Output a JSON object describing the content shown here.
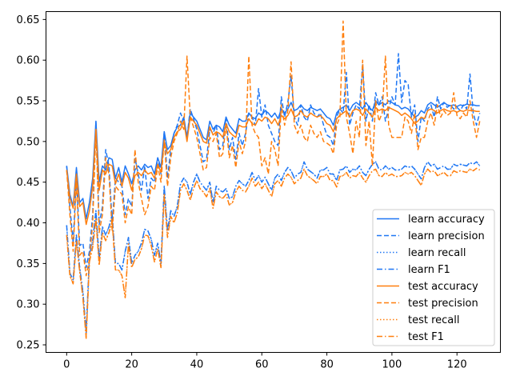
{
  "chart_data": {
    "type": "line",
    "title": "",
    "xlabel": "",
    "ylabel": "",
    "xlim": [
      -6.35,
      133.35
    ],
    "ylim": [
      0.2407,
      0.6597
    ],
    "grid": false,
    "legend_position": "lower-right",
    "x_ticks": [
      0,
      20,
      40,
      60,
      80,
      100,
      120
    ],
    "x_tick_labels": [
      "0",
      "20",
      "40",
      "60",
      "80",
      "100",
      "120"
    ],
    "y_ticks": [
      0.25,
      0.3,
      0.35,
      0.4,
      0.45,
      0.5,
      0.55,
      0.6,
      0.65
    ],
    "y_tick_labels": [
      "0.25",
      "0.30",
      "0.35",
      "0.40",
      "0.45",
      "0.50",
      "0.55",
      "0.60",
      "0.65"
    ],
    "colors": {
      "learn": "#1f77f4",
      "test": "#ff7f0e"
    },
    "series": [
      {
        "name": "learn accuracy",
        "color": "#1f77f4",
        "style": "solid",
        "values": [
          0.47,
          0.435,
          0.42,
          0.468,
          0.425,
          0.43,
          0.405,
          0.425,
          0.455,
          0.525,
          0.45,
          0.47,
          0.465,
          0.48,
          0.478,
          0.455,
          0.468,
          0.45,
          0.47,
          0.46,
          0.448,
          0.465,
          0.47,
          0.465,
          0.472,
          0.468,
          0.47,
          0.46,
          0.48,
          0.468,
          0.512,
          0.49,
          0.495,
          0.51,
          0.518,
          0.52,
          0.53,
          0.505,
          0.535,
          0.53,
          0.525,
          0.515,
          0.505,
          0.502,
          0.525,
          0.515,
          0.52,
          0.518,
          0.512,
          0.53,
          0.52,
          0.515,
          0.51,
          0.528,
          0.525,
          0.525,
          0.535,
          0.53,
          0.528,
          0.535,
          0.532,
          0.538,
          0.535,
          0.53,
          0.535,
          0.528,
          0.54,
          0.535,
          0.54,
          0.548,
          0.538,
          0.54,
          0.545,
          0.54,
          0.538,
          0.542,
          0.54,
          0.538,
          0.54,
          0.535,
          0.53,
          0.528,
          0.52,
          0.535,
          0.54,
          0.542,
          0.545,
          0.538,
          0.545,
          0.548,
          0.545,
          0.54,
          0.548,
          0.542,
          0.538,
          0.55,
          0.545,
          0.548,
          0.545,
          0.55,
          0.548,
          0.545,
          0.544,
          0.54,
          0.542,
          0.54,
          0.535,
          0.53,
          0.532,
          0.538,
          0.535,
          0.545,
          0.548,
          0.545,
          0.542,
          0.545,
          0.548,
          0.545,
          0.544,
          0.545,
          0.543,
          0.545,
          0.544,
          0.546,
          0.545,
          0.545,
          0.544,
          0.544
        ]
      },
      {
        "name": "learn precision",
        "color": "#1f77f4",
        "style": "dashed",
        "values": [
          0.47,
          0.42,
          0.375,
          0.46,
          0.372,
          0.375,
          0.345,
          0.365,
          0.41,
          0.525,
          0.398,
          0.42,
          0.49,
          0.47,
          0.4,
          0.455,
          0.45,
          0.445,
          0.41,
          0.43,
          0.42,
          0.48,
          0.46,
          0.44,
          0.47,
          0.43,
          0.455,
          0.45,
          0.48,
          0.46,
          0.512,
          0.455,
          0.49,
          0.51,
          0.52,
          0.535,
          0.525,
          0.505,
          0.54,
          0.528,
          0.515,
          0.495,
          0.475,
          0.478,
          0.515,
          0.51,
          0.52,
          0.49,
          0.495,
          0.53,
          0.49,
          0.505,
          0.478,
          0.51,
          0.495,
          0.51,
          0.535,
          0.53,
          0.52,
          0.565,
          0.53,
          0.545,
          0.52,
          0.51,
          0.5,
          0.495,
          0.555,
          0.53,
          0.548,
          0.58,
          0.53,
          0.52,
          0.545,
          0.53,
          0.525,
          0.545,
          0.535,
          0.53,
          0.535,
          0.52,
          0.508,
          0.505,
          0.495,
          0.53,
          0.54,
          0.535,
          0.585,
          0.52,
          0.535,
          0.545,
          0.54,
          0.595,
          0.525,
          0.545,
          0.525,
          0.56,
          0.545,
          0.555,
          0.525,
          0.54,
          0.555,
          0.545,
          0.608,
          0.548,
          0.575,
          0.57,
          0.53,
          0.545,
          0.5,
          0.53,
          0.525,
          0.54,
          0.545,
          0.53,
          0.555,
          0.54,
          0.548,
          0.542,
          0.545,
          0.54,
          0.542,
          0.538,
          0.545,
          0.54,
          0.583,
          0.535,
          0.52,
          0.535
        ]
      },
      {
        "name": "learn recall",
        "color": "#1f77f4",
        "style": "dotted",
        "values": [
          0.397,
          0.338,
          0.33,
          0.385,
          0.345,
          0.315,
          0.265,
          0.36,
          0.378,
          0.415,
          0.355,
          0.395,
          0.385,
          0.395,
          0.41,
          0.35,
          0.35,
          0.342,
          0.365,
          0.382,
          0.35,
          0.36,
          0.365,
          0.375,
          0.392,
          0.39,
          0.38,
          0.36,
          0.375,
          0.35,
          0.445,
          0.39,
          0.415,
          0.408,
          0.42,
          0.448,
          0.455,
          0.45,
          0.435,
          0.45,
          0.46,
          0.45,
          0.445,
          0.44,
          0.45,
          0.425,
          0.445,
          0.44,
          0.438,
          0.442,
          0.43,
          0.432,
          0.445,
          0.452,
          0.448,
          0.445,
          0.452,
          0.462,
          0.452,
          0.458,
          0.45,
          0.456,
          0.448,
          0.44,
          0.455,
          0.46,
          0.452,
          0.462,
          0.468,
          0.464,
          0.455,
          0.46,
          0.462,
          0.475,
          0.466,
          0.463,
          0.46,
          0.455,
          0.465,
          0.465,
          0.468,
          0.46,
          0.46,
          0.452,
          0.465,
          0.466,
          0.47,
          0.462,
          0.466,
          0.465,
          0.47,
          0.462,
          0.458,
          0.466,
          0.472,
          0.475,
          0.466,
          0.465,
          0.47,
          0.466,
          0.468,
          0.465,
          0.465,
          0.466,
          0.47,
          0.468,
          0.47,
          0.466,
          0.46,
          0.454,
          0.468,
          0.475,
          0.47,
          0.472,
          0.466,
          0.468,
          0.47,
          0.466,
          0.466,
          0.472,
          0.47,
          0.472,
          0.471,
          0.47,
          0.474,
          0.472,
          0.475,
          0.47
        ]
      },
      {
        "name": "learn F1",
        "color": "#1f77f4",
        "style": "dashdot",
        "values": [
          0.397,
          0.338,
          0.33,
          0.385,
          0.345,
          0.315,
          0.265,
          0.36,
          0.378,
          0.415,
          0.355,
          0.395,
          0.385,
          0.395,
          0.41,
          0.35,
          0.35,
          0.342,
          0.365,
          0.382,
          0.35,
          0.36,
          0.365,
          0.375,
          0.392,
          0.39,
          0.38,
          0.36,
          0.375,
          0.35,
          0.445,
          0.39,
          0.415,
          0.408,
          0.42,
          0.448,
          0.455,
          0.45,
          0.435,
          0.45,
          0.46,
          0.45,
          0.445,
          0.44,
          0.45,
          0.425,
          0.445,
          0.44,
          0.438,
          0.442,
          0.43,
          0.432,
          0.445,
          0.452,
          0.448,
          0.445,
          0.452,
          0.462,
          0.452,
          0.458,
          0.45,
          0.456,
          0.448,
          0.44,
          0.455,
          0.46,
          0.452,
          0.462,
          0.468,
          0.464,
          0.455,
          0.46,
          0.462,
          0.475,
          0.466,
          0.463,
          0.46,
          0.455,
          0.465,
          0.465,
          0.468,
          0.46,
          0.46,
          0.452,
          0.465,
          0.466,
          0.47,
          0.462,
          0.466,
          0.465,
          0.47,
          0.462,
          0.458,
          0.466,
          0.472,
          0.475,
          0.466,
          0.465,
          0.47,
          0.466,
          0.468,
          0.465,
          0.465,
          0.466,
          0.47,
          0.468,
          0.47,
          0.466,
          0.46,
          0.454,
          0.468,
          0.475,
          0.47,
          0.472,
          0.466,
          0.468,
          0.47,
          0.466,
          0.466,
          0.472,
          0.47,
          0.472,
          0.471,
          0.47,
          0.474,
          0.472,
          0.475,
          0.47
        ]
      },
      {
        "name": "test accuracy",
        "color": "#ff7f0e",
        "style": "solid",
        "values": [
          0.465,
          0.43,
          0.418,
          0.46,
          0.42,
          0.425,
          0.398,
          0.415,
          0.445,
          0.515,
          0.44,
          0.465,
          0.46,
          0.472,
          0.47,
          0.448,
          0.46,
          0.445,
          0.462,
          0.455,
          0.44,
          0.458,
          0.462,
          0.458,
          0.465,
          0.46,
          0.462,
          0.455,
          0.472,
          0.462,
          0.5,
          0.485,
          0.49,
          0.505,
          0.512,
          0.515,
          0.525,
          0.5,
          0.53,
          0.525,
          0.52,
          0.51,
          0.5,
          0.498,
          0.518,
          0.508,
          0.512,
          0.51,
          0.505,
          0.522,
          0.512,
          0.508,
          0.505,
          0.52,
          0.518,
          0.518,
          0.528,
          0.522,
          0.52,
          0.528,
          0.525,
          0.53,
          0.528,
          0.522,
          0.528,
          0.52,
          0.532,
          0.528,
          0.532,
          0.54,
          0.53,
          0.532,
          0.538,
          0.532,
          0.53,
          0.535,
          0.532,
          0.53,
          0.532,
          0.528,
          0.522,
          0.52,
          0.512,
          0.528,
          0.532,
          0.535,
          0.538,
          0.53,
          0.538,
          0.54,
          0.538,
          0.532,
          0.54,
          0.535,
          0.53,
          0.542,
          0.538,
          0.54,
          0.538,
          0.542,
          0.54,
          0.538,
          0.536,
          0.532,
          0.535,
          0.532,
          0.528,
          0.522,
          0.525,
          0.53,
          0.528,
          0.538,
          0.54,
          0.538,
          0.535,
          0.538,
          0.54,
          0.538,
          0.537,
          0.538,
          0.536,
          0.538,
          0.537,
          0.539,
          0.538,
          0.538,
          0.537,
          0.537
        ]
      },
      {
        "name": "test precision",
        "color": "#ff7f0e",
        "style": "dashed",
        "values": [
          0.465,
          0.41,
          0.365,
          0.45,
          0.36,
          0.365,
          0.335,
          0.355,
          0.4,
          0.515,
          0.388,
          0.41,
          0.48,
          0.46,
          0.39,
          0.445,
          0.44,
          0.435,
          0.4,
          0.42,
          0.41,
          0.49,
          0.45,
          0.43,
          0.41,
          0.42,
          0.445,
          0.44,
          0.47,
          0.45,
          0.502,
          0.445,
          0.48,
          0.5,
          0.51,
          0.525,
          0.515,
          0.605,
          0.53,
          0.518,
          0.505,
          0.485,
          0.465,
          0.468,
          0.505,
          0.5,
          0.51,
          0.48,
          0.485,
          0.52,
          0.48,
          0.495,
          0.468,
          0.5,
          0.485,
          0.5,
          0.605,
          0.52,
          0.51,
          0.505,
          0.47,
          0.48,
          0.46,
          0.5,
          0.49,
          0.47,
          0.545,
          0.52,
          0.538,
          0.598,
          0.52,
          0.51,
          0.52,
          0.505,
          0.5,
          0.52,
          0.51,
          0.505,
          0.512,
          0.5,
          0.498,
          0.495,
          0.485,
          0.52,
          0.53,
          0.648,
          0.53,
          0.51,
          0.485,
          0.525,
          0.505,
          0.6,
          0.495,
          0.525,
          0.47,
          0.55,
          0.525,
          0.535,
          0.605,
          0.52,
          0.505,
          0.505,
          0.505,
          0.505,
          0.53,
          0.525,
          0.51,
          0.535,
          0.49,
          0.505,
          0.505,
          0.525,
          0.535,
          0.52,
          0.545,
          0.53,
          0.538,
          0.532,
          0.535,
          0.56,
          0.532,
          0.528,
          0.535,
          0.53,
          0.55,
          0.525,
          0.505,
          0.525
        ]
      },
      {
        "name": "test recall",
        "color": "#ff7f0e",
        "style": "dotted",
        "values": [
          0.385,
          0.335,
          0.325,
          0.378,
          0.34,
          0.308,
          0.258,
          0.352,
          0.37,
          0.405,
          0.348,
          0.388,
          0.378,
          0.388,
          0.402,
          0.342,
          0.342,
          0.335,
          0.308,
          0.374,
          0.345,
          0.355,
          0.358,
          0.368,
          0.385,
          0.384,
          0.372,
          0.352,
          0.368,
          0.345,
          0.435,
          0.382,
          0.408,
          0.4,
          0.412,
          0.44,
          0.448,
          0.44,
          0.428,
          0.442,
          0.452,
          0.442,
          0.438,
          0.432,
          0.442,
          0.418,
          0.438,
          0.432,
          0.43,
          0.435,
          0.422,
          0.425,
          0.438,
          0.445,
          0.44,
          0.438,
          0.445,
          0.455,
          0.445,
          0.45,
          0.442,
          0.448,
          0.44,
          0.432,
          0.448,
          0.452,
          0.445,
          0.455,
          0.46,
          0.456,
          0.448,
          0.452,
          0.455,
          0.466,
          0.458,
          0.455,
          0.452,
          0.448,
          0.457,
          0.457,
          0.46,
          0.452,
          0.452,
          0.444,
          0.457,
          0.458,
          0.462,
          0.455,
          0.458,
          0.457,
          0.462,
          0.455,
          0.45,
          0.458,
          0.464,
          0.466,
          0.458,
          0.457,
          0.462,
          0.458,
          0.46,
          0.457,
          0.457,
          0.458,
          0.462,
          0.46,
          0.462,
          0.458,
          0.452,
          0.446,
          0.46,
          0.466,
          0.462,
          0.464,
          0.458,
          0.46,
          0.462,
          0.458,
          0.458,
          0.464,
          0.462,
          0.464,
          0.463,
          0.462,
          0.466,
          0.464,
          0.467,
          0.465
        ]
      },
      {
        "name": "test F1",
        "color": "#ff7f0e",
        "style": "dashdot",
        "values": [
          0.385,
          0.335,
          0.325,
          0.378,
          0.34,
          0.308,
          0.258,
          0.352,
          0.37,
          0.405,
          0.348,
          0.388,
          0.378,
          0.388,
          0.402,
          0.342,
          0.342,
          0.335,
          0.308,
          0.374,
          0.345,
          0.355,
          0.358,
          0.368,
          0.385,
          0.384,
          0.372,
          0.352,
          0.368,
          0.345,
          0.435,
          0.382,
          0.408,
          0.4,
          0.412,
          0.44,
          0.448,
          0.44,
          0.428,
          0.442,
          0.452,
          0.442,
          0.438,
          0.432,
          0.442,
          0.418,
          0.438,
          0.432,
          0.43,
          0.435,
          0.422,
          0.425,
          0.438,
          0.445,
          0.44,
          0.438,
          0.445,
          0.455,
          0.445,
          0.45,
          0.442,
          0.448,
          0.44,
          0.432,
          0.448,
          0.452,
          0.445,
          0.455,
          0.46,
          0.456,
          0.448,
          0.452,
          0.455,
          0.466,
          0.458,
          0.455,
          0.452,
          0.448,
          0.457,
          0.457,
          0.46,
          0.452,
          0.452,
          0.444,
          0.457,
          0.458,
          0.462,
          0.455,
          0.458,
          0.457,
          0.462,
          0.455,
          0.45,
          0.458,
          0.464,
          0.466,
          0.458,
          0.457,
          0.462,
          0.458,
          0.46,
          0.457,
          0.457,
          0.458,
          0.462,
          0.46,
          0.462,
          0.458,
          0.452,
          0.446,
          0.46,
          0.466,
          0.462,
          0.464,
          0.458,
          0.46,
          0.462,
          0.458,
          0.458,
          0.464,
          0.462,
          0.464,
          0.463,
          0.462,
          0.466,
          0.464,
          0.467,
          0.465
        ]
      }
    ]
  }
}
